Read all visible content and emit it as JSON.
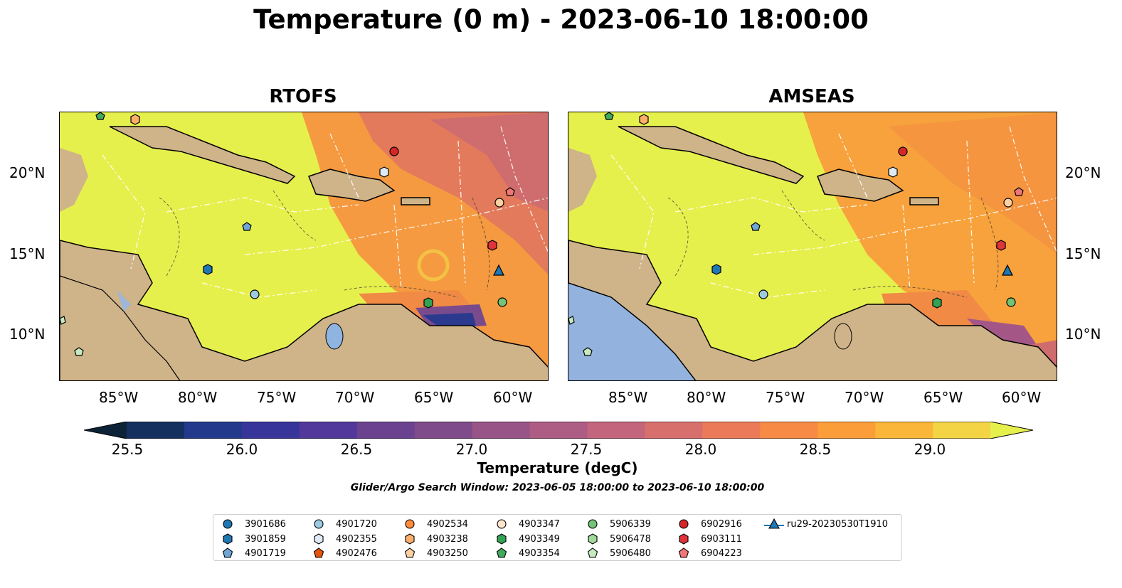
{
  "title": "Temperature (0 m) - 2023-06-10 18:00:00",
  "panels": [
    {
      "title": "RTOFS"
    },
    {
      "title": "AMSEAS"
    }
  ],
  "lon_labels": [
    "85°W",
    "80°W",
    "75°W",
    "70°W",
    "65°W",
    "60°W"
  ],
  "lat_labels": [
    "20°N",
    "15°N",
    "10°N"
  ],
  "colorbar": {
    "label": "Temperature (degC)",
    "ticks": [
      "25.5",
      "26.0",
      "26.5",
      "27.0",
      "27.5",
      "28.0",
      "28.5",
      "29.0"
    ],
    "colors": [
      "#0c2236",
      "#14305e",
      "#22398c",
      "#38359a",
      "#51389a",
      "#6a4290",
      "#804b8a",
      "#985487",
      "#ad5c84",
      "#c3657c",
      "#d76f6c",
      "#eb7b58",
      "#f78a45",
      "#fb9d38",
      "#f9b638",
      "#f2d445",
      "#e6f04c"
    ]
  },
  "search_window": "Glider/Argo Search Window: 2023-06-05 18:00:00 to 2023-06-10 18:00:00",
  "legend": [
    {
      "label": "3901686",
      "marker": "circle",
      "color": "#1f77b4"
    },
    {
      "label": "3901859",
      "marker": "hexagon",
      "color": "#1f77b4"
    },
    {
      "label": "4901719",
      "marker": "pentagon",
      "color": "#6fa6d6"
    },
    {
      "label": "4901720",
      "marker": "circle",
      "color": "#9ecae1"
    },
    {
      "label": "4902355",
      "marker": "hexagon",
      "color": "#deebf7"
    },
    {
      "label": "4902476",
      "marker": "pentagon",
      "color": "#e6550d"
    },
    {
      "label": "4902534",
      "marker": "circle",
      "color": "#fd8d3c"
    },
    {
      "label": "4903238",
      "marker": "hexagon",
      "color": "#fdae6b"
    },
    {
      "label": "4903250",
      "marker": "pentagon",
      "color": "#fdd0a2"
    },
    {
      "label": "4903347",
      "marker": "circle",
      "color": "#fee6ce"
    },
    {
      "label": "4903349",
      "marker": "hexagon",
      "color": "#31a354"
    },
    {
      "label": "4903354",
      "marker": "pentagon",
      "color": "#41ab5d"
    },
    {
      "label": "5906339",
      "marker": "circle",
      "color": "#74c476"
    },
    {
      "label": "5906478",
      "marker": "hexagon",
      "color": "#a1d99b"
    },
    {
      "label": "5906480",
      "marker": "pentagon",
      "color": "#c7e9c0"
    },
    {
      "label": "6902916",
      "marker": "circle",
      "color": "#d62728"
    },
    {
      "label": "6903111",
      "marker": "hexagon",
      "color": "#e0333a"
    },
    {
      "label": "6904223",
      "marker": "pentagon",
      "color": "#f07575"
    },
    {
      "label": "ru29-20230530T1910",
      "marker": "triangle-line",
      "color": "#1f77b4"
    }
  ]
}
